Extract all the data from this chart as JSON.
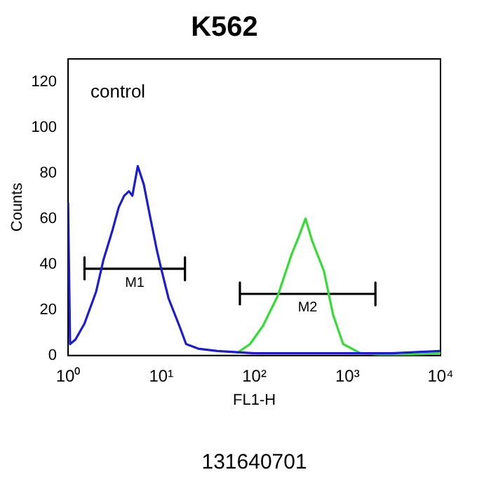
{
  "chart_data": {
    "type": "line",
    "title": "K562",
    "xlabel": "FL1-H",
    "ylabel": "Counts",
    "log": "x",
    "xlim": [
      1,
      10000
    ],
    "xticks": [
      {
        "value": 1,
        "label": "10⁰"
      },
      {
        "value": 10,
        "label": "10¹"
      },
      {
        "value": 100,
        "label": "10²"
      },
      {
        "value": 1000,
        "label": "10³"
      },
      {
        "value": 10000,
        "label": "10⁴"
      }
    ],
    "ylim": [
      0,
      130
    ],
    "yticks": [
      0,
      20,
      40,
      60,
      80,
      100,
      120
    ],
    "grid": false,
    "legend": false,
    "marker": "none",
    "line_style": "solid",
    "series": [
      {
        "color": "#1c1cd0",
        "x": [
          1,
          1.05,
          1.2,
          1.5,
          2,
          2.4,
          3,
          3.5,
          4,
          4.5,
          4.9,
          5.6,
          6.5,
          7.5,
          9,
          10,
          12,
          16,
          18.5,
          25,
          40,
          100,
          300,
          1000,
          3000,
          10000
        ],
        "values": [
          67,
          5,
          7,
          14,
          28,
          42,
          55,
          65,
          70,
          72,
          70,
          83,
          75,
          62,
          46,
          38,
          25,
          12,
          5,
          3,
          2,
          1,
          1,
          1,
          1,
          2
        ]
      },
      {
        "color": "#33dd33",
        "x": [
          65,
          90,
          124,
          178,
          250,
          300,
          355,
          420,
          560,
          700,
          900,
          1380,
          3000,
          10000
        ],
        "values": [
          1,
          5,
          13,
          26,
          44,
          52,
          60,
          50,
          37,
          18,
          5,
          1,
          0,
          1
        ]
      },
      {
        "name": "M1",
        "color": "#000000",
        "x": [
          1.5,
          1.5,
          1.5,
          18,
          18,
          18
        ],
        "values": [
          33,
          43,
          38,
          38,
          43,
          33
        ]
      },
      {
        "name": "M2",
        "color": "#000000",
        "x": [
          70,
          70,
          70,
          2000,
          2000,
          2000
        ],
        "values": [
          22,
          32,
          27,
          27,
          32,
          22
        ]
      }
    ],
    "annotations": [
      "control",
      "131640701"
    ]
  }
}
